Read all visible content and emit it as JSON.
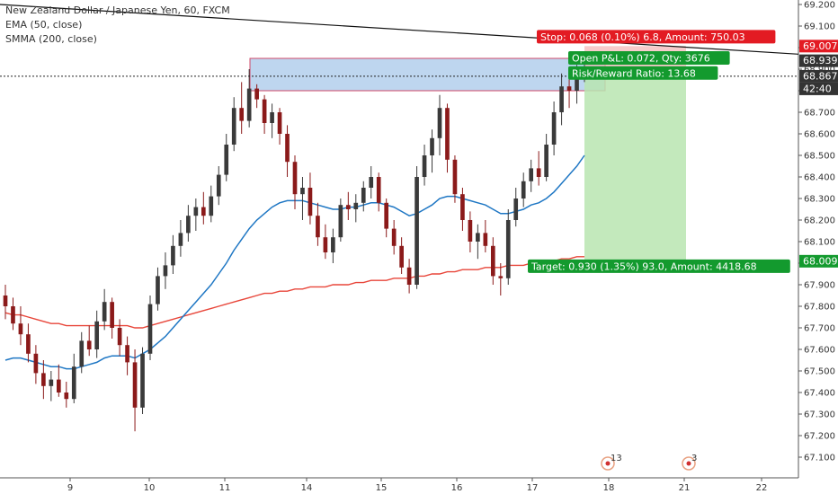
{
  "legend": {
    "title": "New Zealand Dollar / Japanese Yen, 60, FXCM",
    "ema": "EMA (50, close)",
    "smma": "SMMA (200, close)"
  },
  "colors": {
    "up": "#3a3a3a",
    "down": "#8b1a1a",
    "ema": "#1f77c4",
    "smma": "#e8463a",
    "stop": "#e31b23",
    "target": "#139a2e",
    "zone_fill": "#a8c8ea",
    "zone_border": "#d04a6a",
    "profit_fill": "#b9e5b0",
    "trend": "#111111"
  },
  "chart_data": {
    "type": "candlestick",
    "title": "New Zealand Dollar / Japanese Yen, 60, FXCM",
    "ylim": [
      67.05,
      69.2
    ],
    "y_ticks": [
      67.1,
      67.2,
      67.3,
      67.4,
      67.5,
      67.6,
      67.7,
      67.8,
      67.9,
      68.0,
      68.1,
      68.2,
      68.3,
      68.4,
      68.5,
      68.6,
      68.7,
      68.8,
      68.9,
      69.0,
      69.1,
      69.2
    ],
    "x_ticks": [
      "9",
      "10",
      "11",
      "14",
      "15",
      "16",
      "17",
      "18",
      "21",
      "22"
    ],
    "grid": false,
    "ohlc": [
      [
        67.85,
        67.9,
        67.74,
        67.8
      ],
      [
        67.8,
        67.84,
        67.69,
        67.72
      ],
      [
        67.72,
        67.8,
        67.62,
        67.67
      ],
      [
        67.67,
        67.72,
        67.54,
        67.58
      ],
      [
        67.58,
        67.62,
        67.44,
        67.49
      ],
      [
        67.49,
        67.55,
        67.37,
        67.43
      ],
      [
        67.43,
        67.5,
        67.36,
        67.46
      ],
      [
        67.46,
        67.53,
        67.38,
        67.4
      ],
      [
        67.4,
        67.45,
        67.33,
        67.37
      ],
      [
        67.37,
        67.58,
        67.35,
        67.52
      ],
      [
        67.52,
        67.68,
        67.49,
        67.64
      ],
      [
        67.64,
        67.71,
        67.57,
        67.6
      ],
      [
        67.6,
        67.78,
        67.56,
        67.73
      ],
      [
        67.73,
        67.88,
        67.69,
        67.82
      ],
      [
        67.82,
        67.84,
        67.65,
        67.7
      ],
      [
        67.7,
        67.74,
        67.57,
        67.62
      ],
      [
        67.62,
        67.66,
        67.48,
        67.54
      ],
      [
        67.54,
        67.6,
        67.22,
        67.33
      ],
      [
        67.33,
        67.61,
        67.3,
        67.58
      ],
      [
        67.58,
        67.85,
        67.55,
        67.81
      ],
      [
        67.81,
        67.98,
        67.78,
        67.94
      ],
      [
        67.94,
        68.05,
        67.88,
        67.99
      ],
      [
        67.99,
        68.13,
        67.95,
        68.08
      ],
      [
        68.08,
        68.2,
        68.03,
        68.14
      ],
      [
        68.14,
        68.27,
        68.1,
        68.22
      ],
      [
        68.22,
        68.3,
        68.15,
        68.26
      ],
      [
        68.26,
        68.33,
        68.18,
        68.22
      ],
      [
        68.22,
        68.36,
        68.19,
        68.31
      ],
      [
        68.31,
        68.45,
        68.27,
        68.41
      ],
      [
        68.41,
        68.6,
        68.38,
        68.55
      ],
      [
        68.55,
        68.77,
        68.52,
        68.72
      ],
      [
        68.72,
        68.84,
        68.6,
        68.66
      ],
      [
        68.66,
        68.9,
        68.63,
        68.81
      ],
      [
        68.81,
        68.83,
        68.72,
        68.76
      ],
      [
        68.76,
        68.78,
        68.6,
        68.65
      ],
      [
        68.65,
        68.74,
        68.58,
        68.7
      ],
      [
        68.7,
        68.72,
        68.55,
        68.6
      ],
      [
        68.6,
        68.64,
        68.4,
        68.47
      ],
      [
        68.47,
        68.5,
        68.25,
        68.32
      ],
      [
        68.32,
        68.4,
        68.2,
        68.35
      ],
      [
        68.35,
        68.42,
        68.18,
        68.22
      ],
      [
        68.22,
        68.28,
        68.08,
        68.12
      ],
      [
        68.12,
        68.18,
        68.02,
        68.05
      ],
      [
        68.05,
        68.16,
        68.0,
        68.12
      ],
      [
        68.12,
        68.3,
        68.1,
        68.27
      ],
      [
        68.27,
        68.33,
        68.2,
        68.25
      ],
      [
        68.25,
        68.32,
        68.19,
        68.28
      ],
      [
        68.28,
        68.38,
        68.24,
        68.35
      ],
      [
        68.35,
        68.45,
        68.3,
        68.4
      ],
      [
        68.4,
        68.42,
        68.24,
        68.28
      ],
      [
        68.28,
        68.3,
        68.12,
        68.16
      ],
      [
        68.16,
        68.2,
        68.04,
        68.08
      ],
      [
        68.08,
        68.12,
        67.95,
        67.98
      ],
      [
        67.98,
        68.02,
        67.86,
        67.9
      ],
      [
        67.9,
        68.45,
        67.88,
        68.4
      ],
      [
        68.4,
        68.55,
        68.36,
        68.5
      ],
      [
        68.5,
        68.62,
        68.42,
        68.58
      ],
      [
        68.58,
        68.78,
        68.5,
        68.72
      ],
      [
        68.72,
        68.74,
        68.42,
        68.48
      ],
      [
        68.48,
        68.5,
        68.28,
        68.32
      ],
      [
        68.32,
        68.35,
        68.15,
        68.2
      ],
      [
        68.2,
        68.24,
        68.05,
        68.1
      ],
      [
        68.1,
        68.18,
        68.02,
        68.14
      ],
      [
        68.14,
        68.2,
        68.05,
        68.08
      ],
      [
        68.08,
        68.12,
        67.9,
        67.94
      ],
      [
        67.94,
        68.0,
        67.85,
        67.93
      ],
      [
        67.93,
        68.25,
        67.9,
        68.2
      ],
      [
        68.2,
        68.35,
        68.17,
        68.3
      ],
      [
        68.3,
        68.42,
        68.26,
        68.38
      ],
      [
        68.38,
        68.48,
        68.33,
        68.44
      ],
      [
        68.44,
        68.52,
        68.36,
        68.4
      ],
      [
        68.4,
        68.6,
        68.38,
        68.55
      ],
      [
        68.55,
        68.75,
        68.5,
        68.7
      ],
      [
        68.7,
        68.88,
        68.64,
        68.82
      ],
      [
        68.82,
        68.86,
        68.72,
        68.8
      ],
      [
        68.8,
        68.92,
        68.74,
        68.88
      ],
      [
        68.88,
        68.96,
        68.84,
        68.9
      ]
    ],
    "ema_50": [
      67.55,
      67.56,
      67.56,
      67.55,
      67.54,
      67.53,
      67.52,
      67.52,
      67.51,
      67.51,
      67.52,
      67.53,
      67.54,
      67.56,
      67.57,
      67.57,
      67.57,
      67.56,
      67.58,
      67.6,
      67.63,
      67.66,
      67.7,
      67.74,
      67.78,
      67.82,
      67.86,
      67.9,
      67.95,
      68.0,
      68.06,
      68.11,
      68.16,
      68.2,
      68.23,
      68.26,
      68.28,
      68.29,
      68.29,
      68.29,
      68.28,
      68.27,
      68.26,
      68.25,
      68.25,
      68.26,
      68.26,
      68.27,
      68.28,
      68.28,
      68.27,
      68.26,
      68.24,
      68.22,
      68.23,
      68.25,
      68.27,
      68.3,
      68.31,
      68.31,
      68.3,
      68.29,
      68.28,
      68.27,
      68.25,
      68.23,
      68.23,
      68.24,
      68.25,
      68.27,
      68.28,
      68.3,
      68.33,
      68.37,
      68.41,
      68.45,
      68.5
    ],
    "smma_200": [
      67.77,
      67.76,
      67.76,
      67.75,
      67.74,
      67.73,
      67.72,
      67.72,
      67.71,
      67.71,
      67.71,
      67.71,
      67.71,
      67.71,
      67.71,
      67.71,
      67.71,
      67.7,
      67.7,
      67.71,
      67.72,
      67.73,
      67.74,
      67.75,
      67.76,
      67.77,
      67.78,
      67.79,
      67.8,
      67.81,
      67.82,
      67.83,
      67.84,
      67.85,
      67.86,
      67.86,
      67.87,
      67.87,
      67.88,
      67.88,
      67.89,
      67.89,
      67.89,
      67.9,
      67.9,
      67.9,
      67.91,
      67.91,
      67.92,
      67.92,
      67.92,
      67.93,
      67.93,
      67.93,
      67.94,
      67.94,
      67.95,
      67.95,
      67.96,
      67.96,
      67.97,
      67.97,
      67.97,
      67.98,
      67.98,
      67.98,
      67.99,
      67.99,
      67.99,
      68.0,
      68.0,
      68.01,
      68.01,
      68.02,
      68.02,
      68.03,
      68.03
    ]
  },
  "overlays": {
    "stop_label": "Stop: 0.068 (0.10%) 6.8, Amount: 750.03",
    "open_pnl_label": "Open P&L: 0.072, Qty: 3676",
    "risk_reward_label": "Risk/Reward Ratio: 13.68",
    "target_label": "Target: 0.930 (1.35%) 93.0, Amount: 4418.68",
    "resistance_zone": [
      68.8,
      68.95
    ],
    "entry_price": 68.867,
    "stop_price": 69.007,
    "target_price": 68.009,
    "trend_start": 69.2,
    "trend_end": 69.007
  },
  "axis_tags": [
    {
      "text": "69.007",
      "bg": "#e31b23"
    },
    {
      "text": "68.939",
      "bg": "#333333"
    },
    {
      "text": "68.867",
      "bg": "#333333"
    },
    {
      "text": "42:40",
      "bg": "#333333"
    },
    {
      "text": "68.009",
      "bg": "#139a2e"
    }
  ],
  "events": [
    {
      "text": "13"
    },
    {
      "text": "3"
    }
  ]
}
